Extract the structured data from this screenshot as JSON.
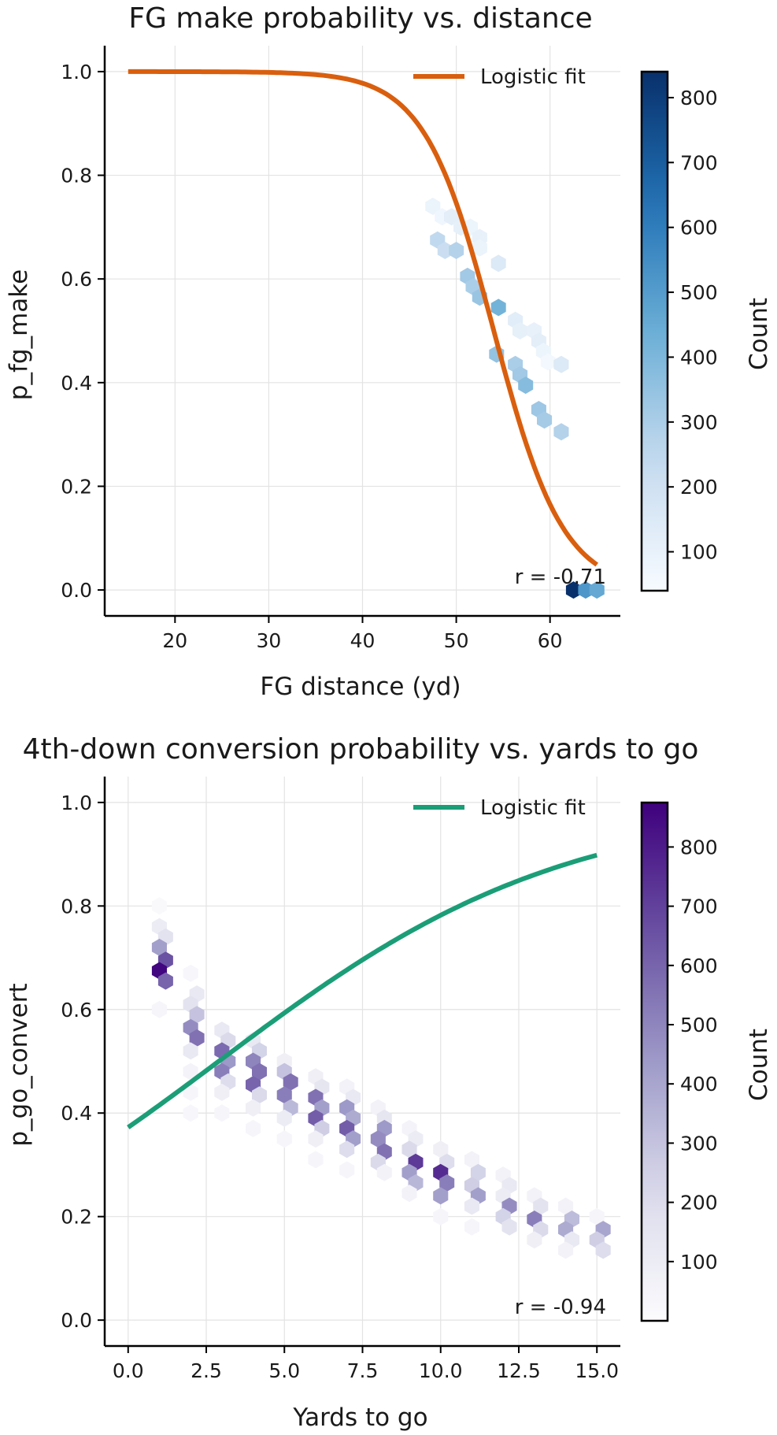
{
  "chart_data": [
    {
      "type": "hexbin",
      "title": "FG make probability vs. distance",
      "xlabel": "FG distance (yd)",
      "ylabel": "p_fg_make",
      "xlim": [
        12.5,
        67.5
      ],
      "ylim": [
        -0.05,
        1.05
      ],
      "xticks": [
        20,
        30,
        40,
        50,
        60
      ],
      "yticks": [
        0.0,
        0.2,
        0.4,
        0.6,
        0.8,
        1.0
      ],
      "xtick_labels": [
        "20",
        "30",
        "40",
        "50",
        "60"
      ],
      "ytick_labels": [
        "0.0",
        "0.2",
        "0.4",
        "0.6",
        "0.8",
        "1.0"
      ],
      "grid": true,
      "colormap": "Blues",
      "colorbar": {
        "label": "Count",
        "range": [
          40,
          840
        ],
        "ticks": [
          100,
          200,
          300,
          400,
          500,
          600,
          700,
          800
        ],
        "tick_labels": [
          "100",
          "200",
          "300",
          "400",
          "500",
          "600",
          "700",
          "800"
        ]
      },
      "annotation": "r = -0.71",
      "annotation_placement": "bottom-right",
      "legend": {
        "label": "Logistic fit",
        "placement": "top-right"
      },
      "fit": {
        "name": "Logistic fit",
        "color": "#d95f0e",
        "model": "logistic",
        "x0": 54,
        "k": 0.27,
        "x_range": [
          15,
          65
        ]
      },
      "bins": [
        {
          "x": 47.5,
          "y": 0.74,
          "count": 90
        },
        {
          "x": 48.5,
          "y": 0.72,
          "count": 70
        },
        {
          "x": 49.5,
          "y": 0.72,
          "count": 120
        },
        {
          "x": 50.5,
          "y": 0.7,
          "count": 110
        },
        {
          "x": 51.5,
          "y": 0.7,
          "count": 80
        },
        {
          "x": 52.5,
          "y": 0.68,
          "count": 100
        },
        {
          "x": 52.5,
          "y": 0.66,
          "count": 90
        },
        {
          "x": 48.0,
          "y": 0.675,
          "count": 250
        },
        {
          "x": 48.8,
          "y": 0.655,
          "count": 220
        },
        {
          "x": 50.0,
          "y": 0.655,
          "count": 280
        },
        {
          "x": 51.2,
          "y": 0.605,
          "count": 320
        },
        {
          "x": 51.8,
          "y": 0.585,
          "count": 300
        },
        {
          "x": 52.5,
          "y": 0.565,
          "count": 340
        },
        {
          "x": 54.5,
          "y": 0.63,
          "count": 150
        },
        {
          "x": 54.5,
          "y": 0.545,
          "count": 420
        },
        {
          "x": 54.3,
          "y": 0.455,
          "count": 350
        },
        {
          "x": 56.3,
          "y": 0.52,
          "count": 130
        },
        {
          "x": 56.8,
          "y": 0.5,
          "count": 110
        },
        {
          "x": 58.3,
          "y": 0.5,
          "count": 100
        },
        {
          "x": 58.8,
          "y": 0.48,
          "count": 120
        },
        {
          "x": 59.3,
          "y": 0.46,
          "count": 80
        },
        {
          "x": 59.8,
          "y": 0.44,
          "count": 60
        },
        {
          "x": 61.2,
          "y": 0.435,
          "count": 150
        },
        {
          "x": 56.3,
          "y": 0.435,
          "count": 300
        },
        {
          "x": 56.8,
          "y": 0.415,
          "count": 320
        },
        {
          "x": 57.4,
          "y": 0.395,
          "count": 380
        },
        {
          "x": 58.8,
          "y": 0.348,
          "count": 330
        },
        {
          "x": 59.4,
          "y": 0.328,
          "count": 310
        },
        {
          "x": 61.2,
          "y": 0.305,
          "count": 280
        },
        {
          "x": 62.5,
          "y": 0.0,
          "count": 840
        },
        {
          "x": 63.8,
          "y": 0.0,
          "count": 520
        },
        {
          "x": 65.0,
          "y": 0.0,
          "count": 460
        }
      ]
    },
    {
      "type": "hexbin",
      "title": "4th-down conversion probability vs. yards to go",
      "xlabel": "Yards to go",
      "ylabel": "p_go_convert",
      "xlim": [
        -0.75,
        15.75
      ],
      "ylim": [
        -0.05,
        1.05
      ],
      "xticks": [
        0.0,
        2.5,
        5.0,
        7.5,
        10.0,
        12.5,
        15.0
      ],
      "yticks": [
        0.0,
        0.2,
        0.4,
        0.6,
        0.8,
        1.0
      ],
      "xtick_labels": [
        "0.0",
        "2.5",
        "5.0",
        "7.5",
        "10.0",
        "12.5",
        "15.0"
      ],
      "ytick_labels": [
        "0.0",
        "0.2",
        "0.4",
        "0.6",
        "0.8",
        "1.0"
      ],
      "grid": true,
      "colormap": "Purples",
      "colorbar": {
        "label": "Count",
        "range": [
          0,
          875
        ],
        "ticks": [
          100,
          200,
          300,
          400,
          500,
          600,
          700,
          800
        ],
        "tick_labels": [
          "100",
          "200",
          "300",
          "400",
          "500",
          "600",
          "700",
          "800"
        ]
      },
      "annotation": "r = -0.94",
      "annotation_placement": "bottom-right",
      "legend": {
        "label": "Logistic fit",
        "placement": "top-right"
      },
      "fit": {
        "name": "Logistic fit",
        "color": "#1b9e77",
        "model": "logistic",
        "x0": 2.9,
        "k": -0.18,
        "x_range": [
          0,
          15
        ]
      },
      "bins": [
        {
          "x": 1,
          "y": 0.8,
          "count": 20
        },
        {
          "x": 1,
          "y": 0.76,
          "count": 100
        },
        {
          "x": 1.2,
          "y": 0.74,
          "count": 160
        },
        {
          "x": 1,
          "y": 0.72,
          "count": 420
        },
        {
          "x": 1.2,
          "y": 0.695,
          "count": 650
        },
        {
          "x": 1,
          "y": 0.675,
          "count": 860
        },
        {
          "x": 1.2,
          "y": 0.655,
          "count": 600
        },
        {
          "x": 1,
          "y": 0.6,
          "count": 40
        },
        {
          "x": 2,
          "y": 0.67,
          "count": 30
        },
        {
          "x": 2.2,
          "y": 0.63,
          "count": 120
        },
        {
          "x": 2,
          "y": 0.61,
          "count": 160
        },
        {
          "x": 2.2,
          "y": 0.59,
          "count": 300
        },
        {
          "x": 2,
          "y": 0.565,
          "count": 480
        },
        {
          "x": 2.2,
          "y": 0.545,
          "count": 560
        },
        {
          "x": 2,
          "y": 0.52,
          "count": 120
        },
        {
          "x": 2,
          "y": 0.48,
          "count": 50
        },
        {
          "x": 2,
          "y": 0.44,
          "count": 40
        },
        {
          "x": 2,
          "y": 0.4,
          "count": 30
        },
        {
          "x": 3,
          "y": 0.56,
          "count": 120
        },
        {
          "x": 3.2,
          "y": 0.54,
          "count": 220
        },
        {
          "x": 3,
          "y": 0.52,
          "count": 580
        },
        {
          "x": 3.2,
          "y": 0.5,
          "count": 440
        },
        {
          "x": 3,
          "y": 0.48,
          "count": 520
        },
        {
          "x": 3.2,
          "y": 0.46,
          "count": 200
        },
        {
          "x": 3,
          "y": 0.44,
          "count": 80
        },
        {
          "x": 3,
          "y": 0.4,
          "count": 40
        },
        {
          "x": 4,
          "y": 0.54,
          "count": 120
        },
        {
          "x": 4.2,
          "y": 0.52,
          "count": 240
        },
        {
          "x": 4,
          "y": 0.5,
          "count": 500
        },
        {
          "x": 4.2,
          "y": 0.48,
          "count": 560
        },
        {
          "x": 4,
          "y": 0.455,
          "count": 600
        },
        {
          "x": 4.2,
          "y": 0.435,
          "count": 220
        },
        {
          "x": 4,
          "y": 0.41,
          "count": 80
        },
        {
          "x": 4,
          "y": 0.37,
          "count": 40
        },
        {
          "x": 5,
          "y": 0.5,
          "count": 80
        },
        {
          "x": 5,
          "y": 0.48,
          "count": 300
        },
        {
          "x": 5.2,
          "y": 0.46,
          "count": 560
        },
        {
          "x": 5,
          "y": 0.435,
          "count": 520
        },
        {
          "x": 5.2,
          "y": 0.41,
          "count": 330
        },
        {
          "x": 5,
          "y": 0.39,
          "count": 100
        },
        {
          "x": 5,
          "y": 0.35,
          "count": 40
        },
        {
          "x": 6,
          "y": 0.47,
          "count": 80
        },
        {
          "x": 6.2,
          "y": 0.45,
          "count": 140
        },
        {
          "x": 6,
          "y": 0.43,
          "count": 560
        },
        {
          "x": 6.2,
          "y": 0.41,
          "count": 420
        },
        {
          "x": 6,
          "y": 0.39,
          "count": 620
        },
        {
          "x": 6.2,
          "y": 0.37,
          "count": 260
        },
        {
          "x": 6,
          "y": 0.35,
          "count": 80
        },
        {
          "x": 6,
          "y": 0.31,
          "count": 40
        },
        {
          "x": 7,
          "y": 0.45,
          "count": 60
        },
        {
          "x": 7.2,
          "y": 0.43,
          "count": 120
        },
        {
          "x": 7,
          "y": 0.41,
          "count": 440
        },
        {
          "x": 7.2,
          "y": 0.39,
          "count": 380
        },
        {
          "x": 7,
          "y": 0.37,
          "count": 620
        },
        {
          "x": 7.2,
          "y": 0.35,
          "count": 420
        },
        {
          "x": 7,
          "y": 0.33,
          "count": 200
        },
        {
          "x": 7,
          "y": 0.29,
          "count": 40
        },
        {
          "x": 8,
          "y": 0.41,
          "count": 60
        },
        {
          "x": 8.2,
          "y": 0.39,
          "count": 140
        },
        {
          "x": 8.2,
          "y": 0.37,
          "count": 440
        },
        {
          "x": 8,
          "y": 0.35,
          "count": 480
        },
        {
          "x": 8.2,
          "y": 0.325,
          "count": 560
        },
        {
          "x": 8,
          "y": 0.305,
          "count": 220
        },
        {
          "x": 8.2,
          "y": 0.285,
          "count": 60
        },
        {
          "x": 9,
          "y": 0.37,
          "count": 50
        },
        {
          "x": 9.2,
          "y": 0.35,
          "count": 100
        },
        {
          "x": 9,
          "y": 0.33,
          "count": 220
        },
        {
          "x": 9.2,
          "y": 0.305,
          "count": 720
        },
        {
          "x": 9,
          "y": 0.285,
          "count": 420
        },
        {
          "x": 9.2,
          "y": 0.265,
          "count": 340
        },
        {
          "x": 9,
          "y": 0.245,
          "count": 60
        },
        {
          "x": 10,
          "y": 0.33,
          "count": 80
        },
        {
          "x": 10.2,
          "y": 0.305,
          "count": 200
        },
        {
          "x": 10,
          "y": 0.285,
          "count": 760
        },
        {
          "x": 10.2,
          "y": 0.265,
          "count": 520
        },
        {
          "x": 10,
          "y": 0.24,
          "count": 420
        },
        {
          "x": 10,
          "y": 0.2,
          "count": 40
        },
        {
          "x": 11,
          "y": 0.31,
          "count": 60
        },
        {
          "x": 11.2,
          "y": 0.285,
          "count": 240
        },
        {
          "x": 11,
          "y": 0.26,
          "count": 260
        },
        {
          "x": 11.2,
          "y": 0.24,
          "count": 420
        },
        {
          "x": 11,
          "y": 0.22,
          "count": 120
        },
        {
          "x": 11,
          "y": 0.18,
          "count": 40
        },
        {
          "x": 12,
          "y": 0.28,
          "count": 60
        },
        {
          "x": 12.2,
          "y": 0.26,
          "count": 120
        },
        {
          "x": 12,
          "y": 0.24,
          "count": 100
        },
        {
          "x": 12.2,
          "y": 0.22,
          "count": 480
        },
        {
          "x": 12,
          "y": 0.2,
          "count": 240
        },
        {
          "x": 12.2,
          "y": 0.18,
          "count": 160
        },
        {
          "x": 13,
          "y": 0.24,
          "count": 60
        },
        {
          "x": 13.2,
          "y": 0.22,
          "count": 160
        },
        {
          "x": 13,
          "y": 0.195,
          "count": 520
        },
        {
          "x": 13.2,
          "y": 0.175,
          "count": 220
        },
        {
          "x": 13,
          "y": 0.155,
          "count": 80
        },
        {
          "x": 14,
          "y": 0.22,
          "count": 60
        },
        {
          "x": 14.2,
          "y": 0.195,
          "count": 320
        },
        {
          "x": 14,
          "y": 0.175,
          "count": 380
        },
        {
          "x": 14.2,
          "y": 0.155,
          "count": 120
        },
        {
          "x": 14,
          "y": 0.135,
          "count": 60
        },
        {
          "x": 15,
          "y": 0.2,
          "count": 40
        },
        {
          "x": 15.2,
          "y": 0.175,
          "count": 400
        },
        {
          "x": 15,
          "y": 0.155,
          "count": 260
        },
        {
          "x": 15.2,
          "y": 0.135,
          "count": 200
        }
      ]
    }
  ]
}
